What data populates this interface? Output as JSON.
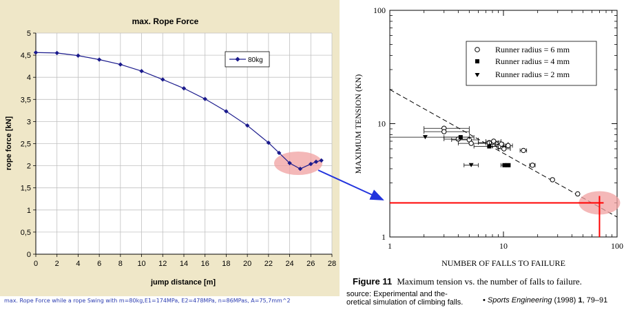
{
  "chart_data": [
    {
      "type": "line",
      "title": "max. Rope Force",
      "xlabel": "jump distance [m]",
      "ylabel": "rope force [kN]",
      "xlim": [
        0,
        28
      ],
      "ylim": [
        0,
        5
      ],
      "x_ticks": [
        "0",
        "2",
        "4",
        "6",
        "8",
        "10",
        "12",
        "14",
        "16",
        "18",
        "20",
        "22",
        "24",
        "26",
        "28"
      ],
      "y_ticks": [
        "0",
        "0,5",
        "1",
        "1,5",
        "2",
        "2,5",
        "3",
        "3,5",
        "4",
        "4,5",
        "5"
      ],
      "grid": true,
      "legend_position": "top-right",
      "series": [
        {
          "name": "80kg",
          "color": "#1a1a8c",
          "x": [
            0,
            2,
            4,
            6,
            8,
            10,
            12,
            14,
            16,
            18,
            20,
            22,
            23,
            24,
            25,
            26,
            26.5,
            27
          ],
          "values": [
            4.56,
            4.55,
            4.49,
            4.4,
            4.29,
            4.14,
            3.95,
            3.75,
            3.51,
            3.23,
            2.91,
            2.52,
            2.29,
            2.06,
            1.93,
            2.04,
            2.09,
            2.12
          ]
        }
      ],
      "highlight_color": "#f0a0a0",
      "caption": "max. Rope Force while a rope Swing with m=80kg,E1=174MPa, E2=478MPa, n=86MPas, A=75,7mm^2"
    },
    {
      "type": "scatter",
      "xscale": "log",
      "yscale": "log",
      "xlabel": "NUMBER OF FALLS TO FAILURE",
      "ylabel": "MAXIMUM TENSION (KN)",
      "xlim": [
        1,
        100
      ],
      "ylim": [
        1,
        100
      ],
      "x_ticks": [
        "1",
        "10",
        "100"
      ],
      "y_ticks": [
        "1",
        "10",
        "100"
      ],
      "legend_position": "top-right",
      "legend": [
        "Runner radius = 6 mm",
        "Runner radius = 4 mm",
        "Runner radius = 2 mm"
      ],
      "series": [
        {
          "name": "Runner radius = 6 mm",
          "marker": "open-circle",
          "points": [
            {
              "x": 3,
              "y": 9.1,
              "xerr": [
                2,
                5
              ]
            },
            {
              "x": 3,
              "y": 8.5,
              "xerr": [
                2,
                5
              ]
            },
            {
              "x": 4,
              "y": 7.3,
              "xerr": [
                3,
                5
              ]
            },
            {
              "x": 5,
              "y": 7.2,
              "xerr": [
                3.5,
                6
              ]
            },
            {
              "x": 5.2,
              "y": 6.7,
              "xerr": [
                4,
                7
              ]
            },
            {
              "x": 7.5,
              "y": 6.8,
              "xerr": [
                6,
                9
              ]
            },
            {
              "x": 8.2,
              "y": 7.0,
              "xerr": [
                7,
                9.5
              ]
            },
            {
              "x": 8.7,
              "y": 6.6,
              "xerr": [
                7.5,
                10
              ]
            },
            {
              "x": 9.1,
              "y": 6.3,
              "xerr": [
                8,
                10.5
              ]
            },
            {
              "x": 9.6,
              "y": 6.6,
              "xerr": [
                8.5,
                11
              ]
            },
            {
              "x": 10.1,
              "y": 6.0,
              "xerr": [
                9,
                11.5
              ]
            },
            {
              "x": 11,
              "y": 6.4,
              "xerr": [
                10,
                12
              ]
            },
            {
              "x": 15,
              "y": 5.8,
              "xerr": [
                14,
                16
              ]
            },
            {
              "x": 18,
              "y": 4.3,
              "xerr": [
                17,
                19
              ]
            },
            {
              "x": 27,
              "y": 3.2,
              "xerr": null
            },
            {
              "x": 45,
              "y": 2.4,
              "xerr": null
            }
          ]
        },
        {
          "name": "Runner radius = 4 mm",
          "marker": "filled-square",
          "points": [
            {
              "x": 4.2,
              "y": 7.6,
              "xerr": [
                3,
                5.5
              ]
            },
            {
              "x": 7.5,
              "y": 6.3,
              "xerr": [
                5.5,
                9
              ]
            },
            {
              "x": 10.2,
              "y": 4.3,
              "xerr": [
                9.5,
                11
              ]
            },
            {
              "x": 11,
              "y": 4.3,
              "xerr": [
                10.5,
                11.5
              ]
            }
          ]
        },
        {
          "name": "Runner radius = 2 mm",
          "marker": "filled-triangle",
          "points": [
            {
              "x": 2.05,
              "y": 7.6,
              "xerr": [
                1,
                5
              ]
            },
            {
              "x": 5.2,
              "y": 4.3,
              "xerr": [
                4.5,
                6
              ]
            }
          ]
        }
      ],
      "fit_line": {
        "from": [
          1,
          20
        ],
        "to": [
          100,
          1.5
        ]
      },
      "highlight": {
        "x": 70,
        "y": 2.0,
        "color": "#ff0000"
      },
      "figure_label": "Figure 11",
      "figure_caption": "Maximum tension vs. the number of falls to failure."
    }
  ],
  "source": {
    "label": "source:",
    "line1": " Experimental and the-",
    "line2": "oretical simulation of climbing falls.",
    "bullet": "•",
    "journal": "Sports Engineering",
    "year": "(1998)",
    "volume": "1",
    "pages": ", 79–91"
  }
}
